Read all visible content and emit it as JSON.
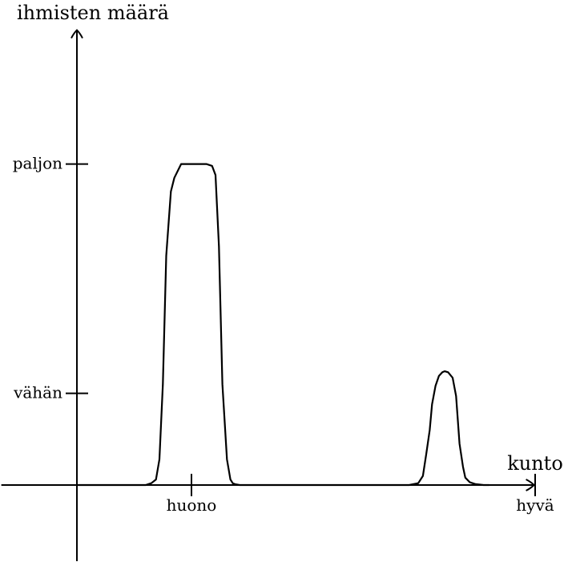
{
  "chart_data": {
    "type": "line",
    "ylabel": "ihmisten määrä",
    "xlabel": "kunto",
    "x_ticks": [
      {
        "label": "huono",
        "value": 1
      },
      {
        "label": "hyvä",
        "value": 4
      }
    ],
    "y_ticks": [
      {
        "label": "vähän",
        "value": 1
      },
      {
        "label": "paljon",
        "value": 3.5
      }
    ],
    "xlim": [
      -0.66,
      3.99
    ],
    "ylim": [
      -0.83,
      4.96
    ],
    "grid": false,
    "legend": "none",
    "series": [
      {
        "color": "#000000",
        "x": [
          0,
          0.6,
          0.65,
          0.69,
          0.72,
          0.75,
          0.78,
          0.82,
          0.85,
          0.91,
          1.13,
          1.18,
          1.21,
          1.24,
          1.27,
          1.31,
          1.34,
          1.36,
          1.38,
          1.42,
          1.5,
          2.9,
          2.98,
          3.02,
          3.05,
          3.08,
          3.1,
          3.13,
          3.16,
          3.19,
          3.21,
          3.24,
          3.28,
          3.31,
          3.34,
          3.37,
          3.39,
          3.43,
          3.48,
          3.55,
          3.6
        ],
        "y": [
          0,
          0,
          0.02,
          0.06,
          0.28,
          1.1,
          2.5,
          3.2,
          3.35,
          3.5,
          3.5,
          3.48,
          3.38,
          2.6,
          1.1,
          0.28,
          0.06,
          0.02,
          0.01,
          0,
          0,
          0,
          0.02,
          0.1,
          0.34,
          0.6,
          0.88,
          1.08,
          1.19,
          1.23,
          1.24,
          1.23,
          1.17,
          0.97,
          0.45,
          0.2,
          0.08,
          0.03,
          0.01,
          0,
          0
        ]
      }
    ],
    "colors": {
      "axis": "#000000",
      "curve": "#000000",
      "background": "#ffffff"
    }
  }
}
